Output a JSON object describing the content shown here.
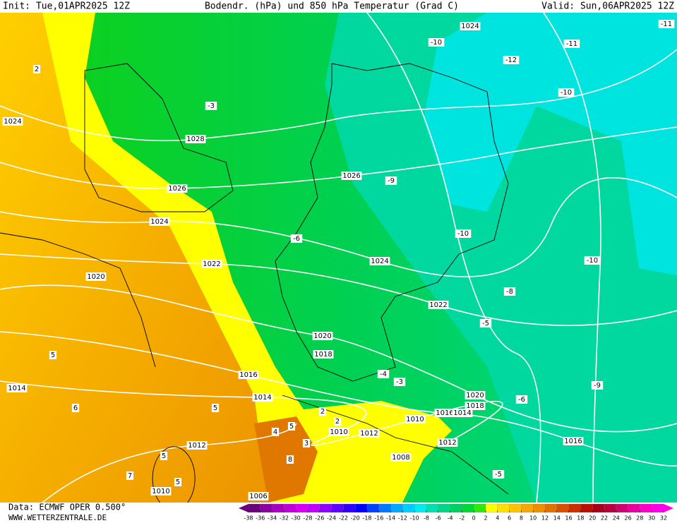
{
  "header": {
    "init": "Init: Tue,01APR2025 12Z",
    "title": "Bodendr. (hPa) und 850 hPa Temperatur (Grad C)",
    "valid": "Valid: Sun,06APR2025 12Z"
  },
  "map": {
    "pressure_labels": [
      1024,
      1028,
      1026,
      1026,
      1024,
      1024,
      1024,
      1022,
      1022,
      1020,
      1020,
      1018,
      1016,
      1014,
      1014,
      1020,
      1018,
      1016,
      1014,
      1010,
      1012,
      1010,
      1012,
      1008,
      1012,
      1016,
      1010,
      1006
    ],
    "temperature_labels": [
      -10,
      -11,
      -11,
      -12,
      -10,
      -3,
      -9,
      -6,
      -10,
      -10,
      -8,
      -5,
      -4,
      -3,
      -6,
      -9,
      -5,
      2,
      5,
      6,
      5,
      5,
      7,
      5,
      2,
      2,
      4,
      5,
      3,
      8
    ]
  },
  "footer": {
    "source": "Data: ECMWF OPER 0.500°",
    "site": "WWW.WETTERZENTRALE.DE"
  },
  "scale": {
    "ticks": [
      -38,
      -36,
      -34,
      -32,
      -30,
      -28,
      -26,
      -24,
      -22,
      -20,
      -18,
      -16,
      -14,
      -12,
      -10,
      -8,
      -6,
      -4,
      -2,
      0,
      2,
      4,
      6,
      8,
      10,
      12,
      14,
      16,
      18,
      20,
      22,
      24,
      26,
      28,
      30,
      32
    ],
    "colors": [
      "#6a0080",
      "#8a00a0",
      "#a800c0",
      "#c000d8",
      "#d800f0",
      "#c000ff",
      "#9000ff",
      "#6000ff",
      "#3000ff",
      "#0000ff",
      "#0040ff",
      "#0078ff",
      "#00a8ff",
      "#00ccff",
      "#00eaf0",
      "#00e0b0",
      "#00d888",
      "#00d060",
      "#00d838",
      "#30e810",
      "#ffff00",
      "#ffe000",
      "#ffc400",
      "#f4a800",
      "#ec9000",
      "#e07000",
      "#d85000",
      "#c83000",
      "#b81000",
      "#a80018",
      "#b80040",
      "#d00070",
      "#e800a0",
      "#ff00c8",
      "#ff00e8"
    ]
  }
}
